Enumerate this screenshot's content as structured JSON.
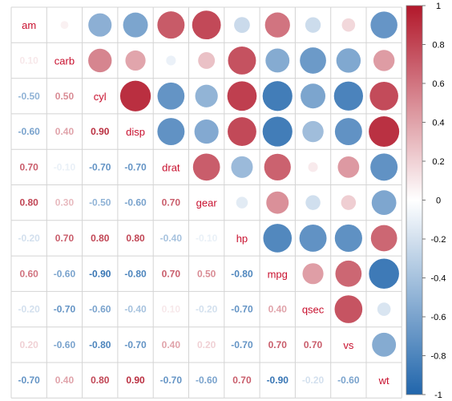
{
  "chart_data": {
    "type": "heatmap",
    "variables": [
      "am",
      "carb",
      "cyl",
      "disp",
      "drat",
      "gear",
      "hp",
      "mpg",
      "qsec",
      "vs",
      "wt"
    ],
    "lower_labels": [
      [],
      [
        "0.10"
      ],
      [
        "-0.50",
        "0.50"
      ],
      [
        "-0.60",
        "0.40",
        "0.90"
      ],
      [
        "0.70",
        "-0.10",
        "-0.70",
        "-0.70"
      ],
      [
        "0.80",
        "0.30",
        "-0.50",
        "-0.60",
        "0.70"
      ],
      [
        "-0.20",
        "0.70",
        "0.80",
        "0.80",
        "-0.40",
        "-0.10"
      ],
      [
        "0.60",
        "-0.60",
        "-0.90",
        "-0.80",
        "0.70",
        "0.50",
        "-0.80"
      ],
      [
        "-0.20",
        "-0.70",
        "-0.60",
        "-0.40",
        "0.10",
        "-0.20",
        "-0.70",
        "0.40"
      ],
      [
        "0.20",
        "-0.60",
        "-0.80",
        "-0.70",
        "0.40",
        "0.20",
        "-0.70",
        "0.70",
        "0.70"
      ],
      [
        "-0.70",
        "0.40",
        "0.80",
        "0.90",
        "-0.70",
        "-0.60",
        "0.70",
        "-0.90",
        "-0.20",
        "-0.60"
      ]
    ],
    "upper_values": [
      [
        null,
        0.06,
        -0.52,
        -0.59,
        0.71,
        0.79,
        -0.24,
        0.6,
        -0.23,
        0.17,
        -0.69
      ],
      [
        null,
        null,
        0.53,
        0.39,
        -0.09,
        0.27,
        0.75,
        -0.55,
        -0.66,
        -0.57,
        0.43
      ],
      [
        null,
        null,
        null,
        0.9,
        -0.7,
        -0.49,
        0.83,
        -0.85,
        -0.59,
        -0.81,
        0.78
      ],
      [
        null,
        null,
        null,
        null,
        -0.71,
        -0.56,
        0.79,
        -0.85,
        -0.43,
        -0.71,
        0.89
      ],
      [
        null,
        null,
        null,
        null,
        null,
        0.7,
        -0.45,
        0.68,
        0.09,
        0.44,
        -0.71
      ],
      [
        null,
        null,
        null,
        null,
        null,
        null,
        -0.13,
        0.48,
        -0.21,
        0.21,
        -0.58
      ],
      [
        null,
        null,
        null,
        null,
        null,
        null,
        null,
        -0.78,
        -0.71,
        -0.72,
        0.66
      ],
      [
        null,
        null,
        null,
        null,
        null,
        null,
        null,
        null,
        0.42,
        0.66,
        -0.87
      ],
      [
        null,
        null,
        null,
        null,
        null,
        null,
        null,
        null,
        null,
        0.74,
        -0.17
      ],
      [
        null,
        null,
        null,
        null,
        null,
        null,
        null,
        null,
        null,
        null,
        -0.55
      ],
      [
        null,
        null,
        null,
        null,
        null,
        null,
        null,
        null,
        null,
        null,
        null
      ]
    ],
    "colorbar": {
      "range": [
        -1,
        1
      ],
      "ticks": [
        "-1",
        "-0.8",
        "-0.6",
        "-0.4",
        "-0.2",
        "0",
        "0.2",
        "0.4",
        "0.6",
        "0.8",
        "1"
      ],
      "negative_color": "#2166ac",
      "mid_color": "#ffffff",
      "positive_color": "#b2182b"
    },
    "lower_style": "number",
    "upper_style": "circle",
    "diagonal_label_color": "#c8102e",
    "grid": true
  }
}
